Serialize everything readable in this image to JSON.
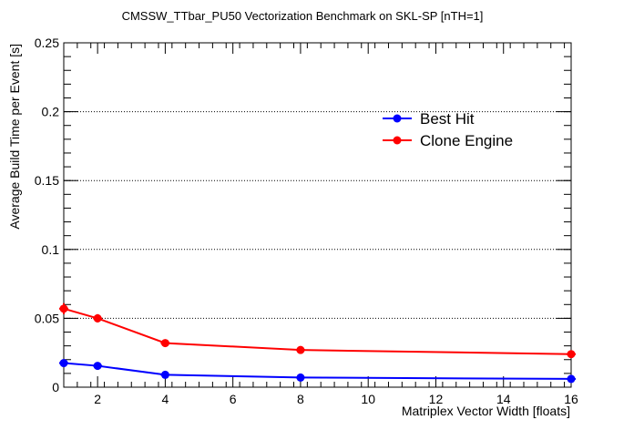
{
  "chart_data": {
    "type": "line",
    "title": "CMSSW_TTbar_PU50 Vectorization Benchmark on SKL-SP [nTH=1]",
    "xlabel": "Matriplex Vector Width [floats]",
    "ylabel": "Average Build Time per Event [s]",
    "xlim": [
      1,
      16
    ],
    "ylim": [
      0,
      0.25
    ],
    "x_ticks": [
      2,
      4,
      6,
      8,
      10,
      12,
      14,
      16
    ],
    "x_tick_labels": [
      "2",
      "4",
      "6",
      "8",
      "10",
      "12",
      "14",
      "16"
    ],
    "y_ticks": [
      0,
      0.05,
      0.1,
      0.15,
      0.2,
      0.25
    ],
    "y_tick_labels": [
      "0",
      "0.05",
      "0.1",
      "0.15",
      "0.2",
      "0.25"
    ],
    "grid": "horizontal dotted",
    "legend_position": "upper-right",
    "series": [
      {
        "name": "Best Hit",
        "color": "#0000ff",
        "x": [
          1,
          2,
          4,
          8,
          16
        ],
        "values": [
          0.0175,
          0.0155,
          0.009,
          0.007,
          0.006
        ],
        "errors": [
          0.0025,
          0.0015,
          0.001,
          0.001,
          0.001
        ]
      },
      {
        "name": "Clone Engine",
        "color": "#ff0000",
        "x": [
          1,
          2,
          4,
          8,
          16
        ],
        "values": [
          0.057,
          0.05,
          0.032,
          0.027,
          0.024
        ],
        "errors": [
          0.004,
          0.003,
          0.0015,
          0.0015,
          0.0025
        ]
      }
    ]
  }
}
